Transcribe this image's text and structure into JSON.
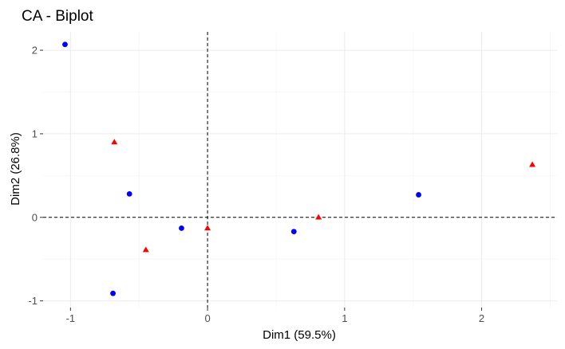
{
  "chart_data": {
    "type": "scatter",
    "title": "CA - Biplot",
    "xlabel": "Dim1 (59.5%)",
    "ylabel": "Dim2 (26.8%)",
    "xlim": [
      -1.2,
      2.55
    ],
    "ylim": [
      -1.08,
      2.22
    ],
    "xticks": [
      -1,
      0,
      1,
      2
    ],
    "yticks": [
      -1,
      0,
      1,
      2
    ],
    "xtick_labels": [
      "-1",
      "0",
      "1",
      "2"
    ],
    "ytick_labels": [
      "-1",
      "0",
      "1",
      "2"
    ],
    "grid": true,
    "reference_lines": {
      "x": 0,
      "y": 0
    },
    "series": [
      {
        "marker": "circle",
        "color": "#0000ff",
        "points": [
          {
            "x": -1.04,
            "y": 2.07
          },
          {
            "x": -0.57,
            "y": 0.28
          },
          {
            "x": -0.19,
            "y": -0.13
          },
          {
            "x": 0.63,
            "y": -0.17
          },
          {
            "x": 1.54,
            "y": 0.27
          },
          {
            "x": -0.69,
            "y": -0.91
          }
        ]
      },
      {
        "marker": "triangle",
        "color": "#ff0000",
        "points": [
          {
            "x": -0.68,
            "y": 0.9
          },
          {
            "x": 0.0,
            "y": -0.13
          },
          {
            "x": -0.45,
            "y": -0.39
          },
          {
            "x": 0.81,
            "y": 0.0
          },
          {
            "x": 2.37,
            "y": 0.63
          }
        ]
      }
    ]
  }
}
